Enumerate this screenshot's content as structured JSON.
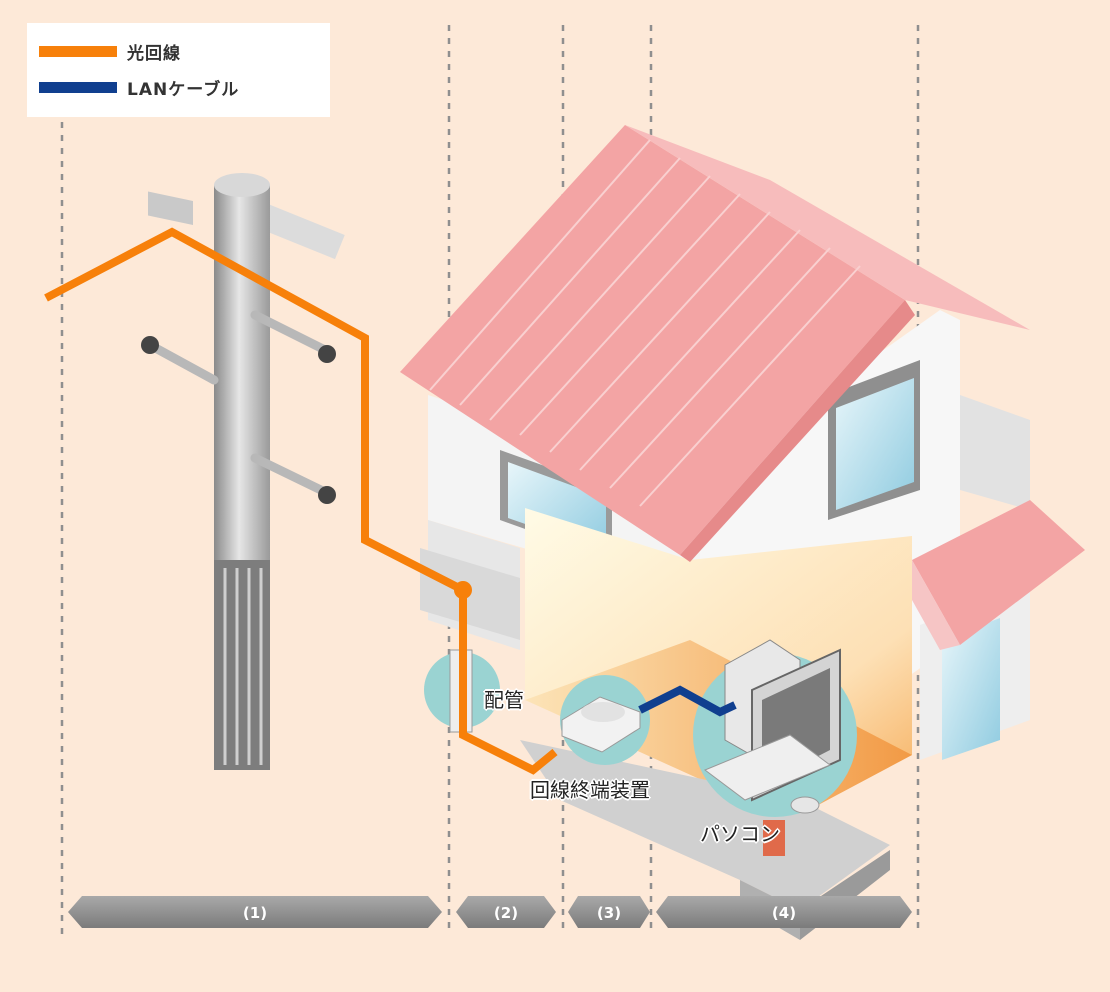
{
  "legend": {
    "items": [
      {
        "label": "光回線",
        "color": "#f7800a"
      },
      {
        "label": "LANケーブル",
        "color": "#103f8f"
      }
    ]
  },
  "labels": {
    "conduit": "配管",
    "onu": "回線終端装置",
    "pc": "パソコン"
  },
  "sections": [
    {
      "label": "(1)"
    },
    {
      "label": "(2)"
    },
    {
      "label": "(3)"
    },
    {
      "label": "(4)"
    }
  ],
  "colors": {
    "background": "#fde9d8",
    "fiber": "#f7800a",
    "lan": "#103f8f",
    "roof": "#f2a7a7",
    "section_bar": "#8c8c8c"
  }
}
